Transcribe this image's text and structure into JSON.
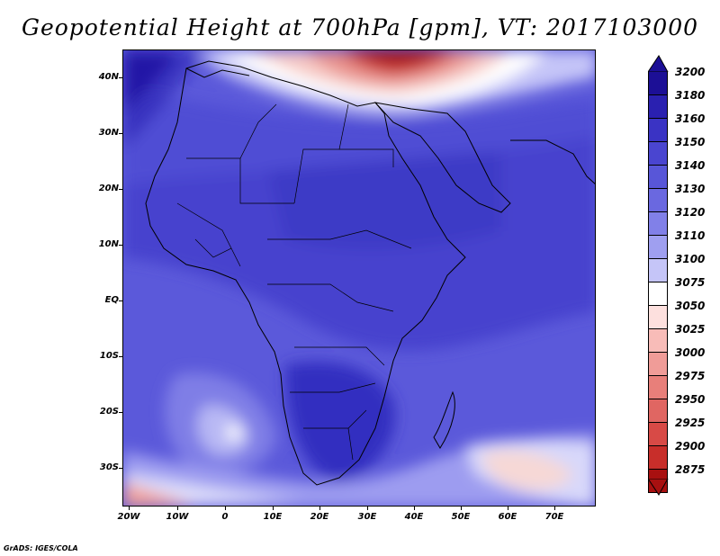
{
  "title": "Geopotential Height at 700hPa [gpm], VT: 2017103000",
  "credit": "GrADS: IGES/COLA",
  "lat_labels": [
    "40N",
    "30N",
    "20N",
    "10N",
    "EQ",
    "10S",
    "20S",
    "30S"
  ],
  "lon_labels": [
    "20W",
    "10W",
    "0",
    "10E",
    "20E",
    "30E",
    "40E",
    "50E",
    "60E",
    "70E"
  ],
  "colorbar": {
    "levels": [
      "3200",
      "3180",
      "3160",
      "3150",
      "3140",
      "3130",
      "3120",
      "3110",
      "3100",
      "3075",
      "3050",
      "3025",
      "3000",
      "2975",
      "2950",
      "2925",
      "2900",
      "2875"
    ],
    "colors": [
      "#1c0f96",
      "#2a20b0",
      "#3a33c4",
      "#4a45d0",
      "#5856d8",
      "#6a68e0",
      "#8180e8",
      "#9f9ff0",
      "#c5c5f8",
      "#ffffff",
      "#fde0de",
      "#f8bcb8",
      "#f09c98",
      "#e87f7a",
      "#e06662",
      "#d84a46",
      "#c82e2a",
      "#a81010"
    ]
  },
  "colors": {
    "deep_blue": "#1c0f96",
    "mid_blue": "#5856d8",
    "light_blue": "#9f9ff0",
    "white": "#ffffff",
    "red": "#c82e2a"
  }
}
